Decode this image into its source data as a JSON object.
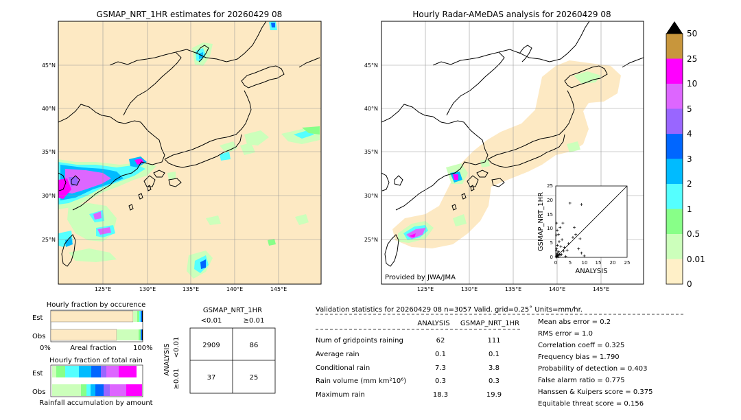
{
  "left_map": {
    "title": "GSMAP_NRT_1HR estimates for 20260429 08",
    "lon_ticks": [
      "125°E",
      "130°E",
      "135°E",
      "140°E",
      "145°E"
    ],
    "lat_ticks": [
      "45°N",
      "40°N",
      "35°N",
      "30°N",
      "25°N"
    ]
  },
  "right_map": {
    "title": "Hourly Radar-AMeDAS analysis for 20260429 08",
    "lon_ticks": [
      "125°E",
      "130°E",
      "135°E",
      "140°E",
      "145°E"
    ],
    "lat_ticks": [
      "45°N",
      "40°N",
      "35°N",
      "30°N",
      "25°N"
    ],
    "credit": "Provided by JWA/JMA"
  },
  "colorbar": {
    "labels": [
      "50",
      "25",
      "10",
      "5",
      "4",
      "3",
      "2",
      "1",
      "0.5",
      "0.01",
      "0"
    ],
    "colors": [
      "#c8963c",
      "#ff00ff",
      "#dd66ff",
      "#9966ff",
      "#0066ff",
      "#00bbff",
      "#55ffff",
      "#88ff88",
      "#ccffbb",
      "#fff0c8"
    ],
    "over_color": "#000000"
  },
  "chart_data": [
    {
      "type": "scatter",
      "title": "",
      "xlabel": "ANALYSIS",
      "ylabel": "GSMAP_NRT_1HR",
      "xlim": [
        0,
        25
      ],
      "ylim": [
        0,
        25
      ],
      "x_ticks": [
        "0",
        "5",
        "10",
        "15",
        "20",
        "25"
      ],
      "y_ticks": [
        "0",
        "5",
        "10",
        "15",
        "20",
        "25"
      ],
      "diagonal_line": true,
      "points": [
        [
          0.1,
          0.2
        ],
        [
          0.2,
          0.1
        ],
        [
          0.3,
          0.5
        ],
        [
          0.5,
          0.3
        ],
        [
          0.4,
          1.2
        ],
        [
          0.8,
          0.6
        ],
        [
          1.0,
          2.0
        ],
        [
          1.5,
          0.8
        ],
        [
          0.3,
          3.0
        ],
        [
          0.6,
          4.2
        ],
        [
          2.0,
          1.0
        ],
        [
          1.2,
          5.5
        ],
        [
          0.2,
          7.8
        ],
        [
          0.5,
          9.5
        ],
        [
          1.5,
          10.5
        ],
        [
          2.5,
          12.0
        ],
        [
          0.3,
          12.0
        ],
        [
          1.0,
          8.0
        ],
        [
          3.0,
          3.5
        ],
        [
          4.0,
          2.5
        ],
        [
          6.0,
          7.0
        ],
        [
          7.0,
          8.0
        ],
        [
          8.5,
          6.5
        ],
        [
          9.0,
          1.5
        ],
        [
          5.0,
          19.0
        ],
        [
          9.0,
          18.5
        ],
        [
          6.5,
          10.5
        ],
        [
          3.5,
          0.3
        ],
        [
          2.8,
          2.2
        ],
        [
          1.8,
          3.8
        ],
        [
          0.7,
          1.5
        ],
        [
          0.2,
          2.5
        ],
        [
          8.0,
          3.0
        ],
        [
          10.0,
          0.5
        ],
        [
          4.5,
          4.8
        ],
        [
          2.2,
          6.2
        ],
        [
          0.9,
          0.2
        ],
        [
          1.3,
          1.1
        ],
        [
          0.4,
          0.4
        ],
        [
          0.6,
          0.9
        ]
      ]
    },
    {
      "type": "bar",
      "title": "Hourly fraction by occurence",
      "categories": [
        "Est",
        "Obs"
      ],
      "xlabel": "Areal fraction",
      "x_tick_labels": [
        "0%",
        "100%"
      ]
    },
    {
      "type": "bar",
      "title": "Hourly fraction of total rain",
      "categories": [
        "Est",
        "Obs"
      ],
      "xlabel": "Rainfall accumulation by amount"
    },
    {
      "type": "table",
      "title": "GSMAP_NRT_1HR",
      "col_headers": [
        "<0.01",
        "≥0.01"
      ],
      "row_axis_label": "ANALYSIS",
      "row_headers": [
        "<0.01",
        "≥0.01"
      ],
      "cells": [
        [
          "2909",
          "86"
        ],
        [
          "37",
          "25"
        ]
      ]
    }
  ],
  "stats": {
    "header": "Validation statistics for 20260429 08  n=3057 Valid. grid=0.25˚ Units=mm/hr.",
    "col_analysis": "ANALYSIS",
    "col_gsmap": "GSMAP_NRT_1HR",
    "rows": [
      {
        "label": "Num of gridpoints raining",
        "a": "62",
        "g": "111"
      },
      {
        "label": "Average rain",
        "a": "0.1",
        "g": "0.1"
      },
      {
        "label": "Conditional rain",
        "a": "7.3",
        "g": "3.8"
      },
      {
        "label": "Rain volume (mm km²10⁶)",
        "a": "0.3",
        "g": "0.3"
      },
      {
        "label": "Maximum rain",
        "a": "18.3",
        "g": "19.9"
      }
    ],
    "scores": [
      "Mean abs error =    0.2",
      "RMS error =    1.0",
      "Correlation coeff =  0.325",
      "Frequency bias =  1.790",
      "Probability of detection =  0.403",
      "False alarm ratio =  0.775",
      "Hanssen & Kuipers score =  0.375",
      "Equitable threat score =  0.156"
    ]
  }
}
